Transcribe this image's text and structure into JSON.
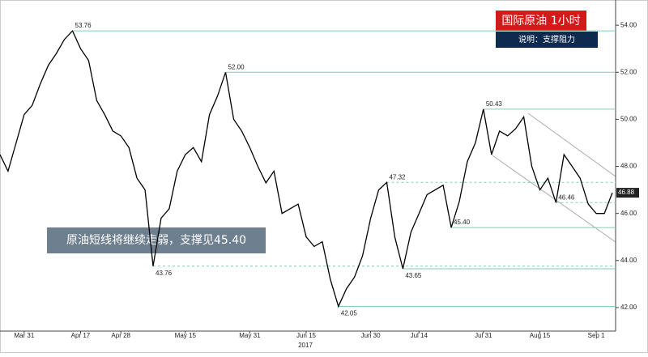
{
  "chart_data": {
    "type": "line",
    "title": "国际原油  1小时",
    "subtitle": "说明：支撑阻力",
    "annotation": "原油短线将继续走弱，支撑见45.40",
    "year_label": "2017",
    "categories": [
      null,
      null,
      null,
      "Mar 31",
      null,
      null,
      null,
      null,
      null,
      null,
      "Apr 17",
      null,
      null,
      null,
      null,
      "Apr 28",
      null,
      null,
      null,
      null,
      null,
      null,
      null,
      "May 15",
      null,
      null,
      null,
      null,
      null,
      null,
      null,
      "May 31",
      null,
      null,
      null,
      null,
      null,
      null,
      "Jun 15",
      null,
      null,
      null,
      null,
      null,
      null,
      null,
      "Jun 30",
      null,
      null,
      null,
      null,
      null,
      "Jul 14",
      null,
      null,
      null,
      null,
      null,
      null,
      null,
      "Jul 31",
      null,
      null,
      null,
      null,
      null,
      null,
      "Aug 15",
      null,
      null,
      null,
      null,
      null,
      null,
      "Sep 1",
      null,
      null
    ],
    "series": [
      {
        "color": "#000000",
        "values": [
          48.5,
          47.8,
          49.0,
          50.2,
          50.6,
          51.5,
          52.3,
          52.8,
          53.4,
          53.76,
          53.0,
          52.5,
          50.8,
          50.2,
          49.5,
          49.3,
          48.8,
          47.5,
          47.0,
          43.76,
          45.8,
          46.2,
          47.8,
          48.5,
          48.8,
          48.2,
          50.2,
          51.0,
          52.0,
          50.0,
          49.5,
          48.8,
          48.0,
          47.3,
          47.8,
          46.0,
          46.2,
          46.4,
          45.0,
          44.6,
          44.8,
          43.2,
          42.05,
          42.8,
          43.3,
          44.2,
          45.8,
          47.0,
          47.32,
          45.0,
          43.65,
          45.2,
          46.0,
          46.8,
          47.0,
          47.2,
          45.4,
          46.5,
          48.2,
          49.0,
          50.43,
          48.5,
          49.5,
          49.3,
          49.6,
          50.1,
          48.0,
          47.0,
          47.5,
          46.46,
          48.5,
          48.0,
          47.5,
          46.4,
          46.0,
          46.0,
          46.88
        ]
      }
    ],
    "ylim": [
      41,
      54.9
    ],
    "yticks": [
      {
        "value": 42,
        "label": "42.00"
      },
      {
        "value": 44,
        "label": "44.00"
      },
      {
        "value": 46,
        "label": "46.00"
      },
      {
        "value": 48,
        "label": "48.00"
      },
      {
        "value": 50,
        "label": "50.00"
      },
      {
        "value": 52,
        "label": "52.00"
      },
      {
        "value": 54,
        "label": "54.00"
      }
    ],
    "levels": [
      {
        "value": 53.76,
        "label": "53.76",
        "dashed": false
      },
      {
        "value": 52,
        "label": "52.00",
        "dashed": false
      },
      {
        "value": 50.43,
        "label": "50.43",
        "dashed": false
      },
      {
        "value": 47.32,
        "label": "47.32",
        "dashed": true
      },
      {
        "value": 46.46,
        "label": "46.46",
        "dashed": true
      },
      {
        "value": 45.4,
        "label": "45.40",
        "dashed": false
      },
      {
        "value": 43.76,
        "label": "43.76",
        "dashed": true
      },
      {
        "value": 43.65,
        "label": "43.65",
        "dashed": false
      },
      {
        "value": 42.05,
        "label": "42.05",
        "dashed": false
      }
    ],
    "last_price": {
      "value": 46.88,
      "label": "46.88"
    },
    "level_color": "#7fcfb0"
  }
}
